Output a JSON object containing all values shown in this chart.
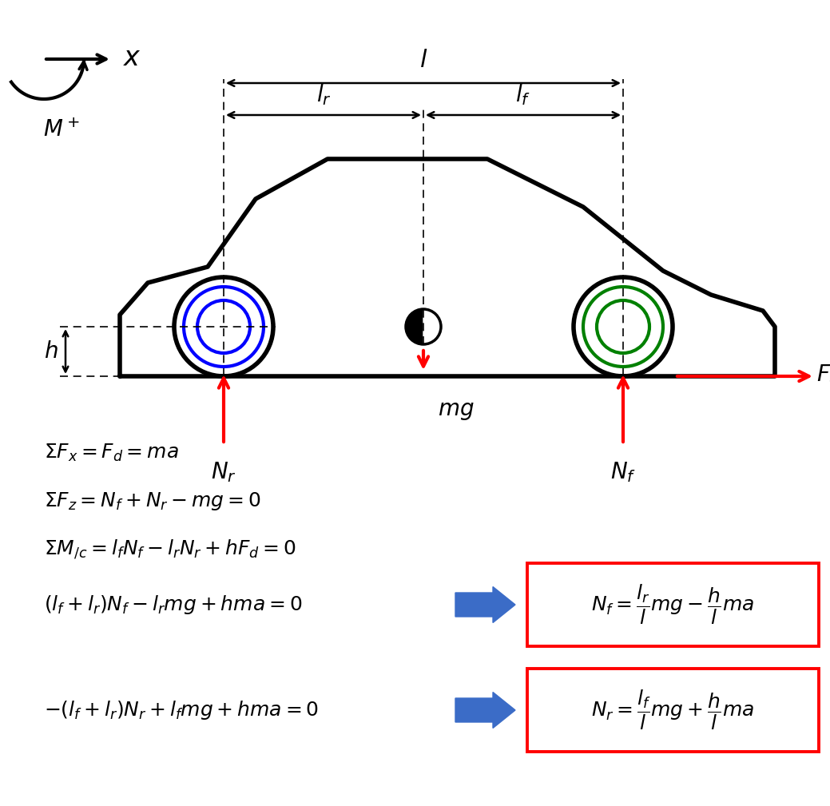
{
  "bg_color": "#ffffff",
  "car_body_color": "#000000",
  "car_body_lw": 4.0,
  "rear_wheel_color": "#0000ff",
  "front_wheel_color": "#008000",
  "arrow_color": "#ff0000",
  "dashed_color": "#000000",
  "blue_arrow_color": "#3b6cc7",
  "eq1": "$\\Sigma F_x = F_d = ma$",
  "eq2": "$\\Sigma F_z = N_f + N_r - mg = 0$",
  "eq3": "$\\Sigma M_{/c} = l_f N_f - l_r N_r + hF_d = 0$",
  "eq4": "$(l_f + l_r)N_f - l_r mg + hma = 0$",
  "eq5": "$-(l_f + l_r)N_r + l_f mg + hma = 0$",
  "box_eq1": "$N_f = \\dfrac{l_r}{l}mg - \\dfrac{h}{l}ma$",
  "box_eq2": "$N_r = \\dfrac{l_f}{l}mg + \\dfrac{h}{l}ma$"
}
